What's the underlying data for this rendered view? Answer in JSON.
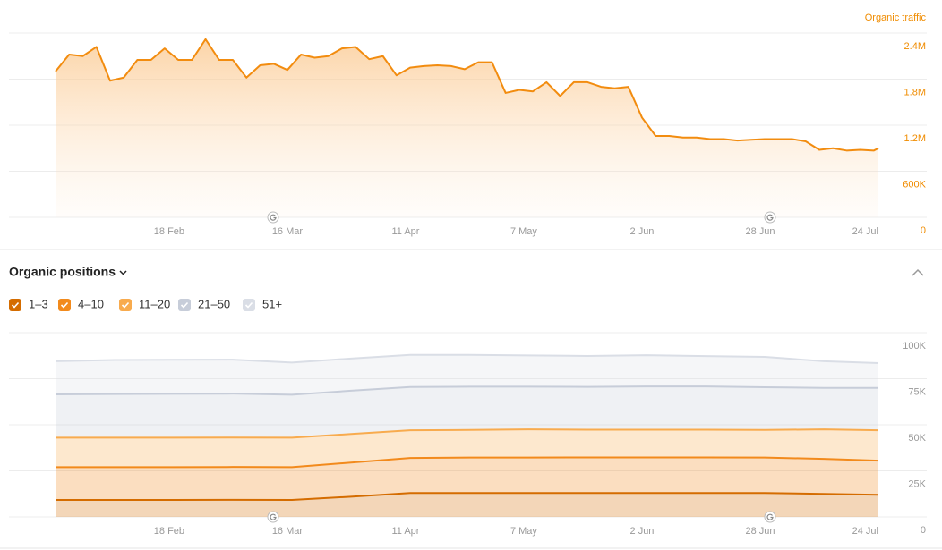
{
  "chart_data": [
    {
      "type": "area",
      "y_label": "Organic traffic",
      "color": "#f28c0f",
      "x": [
        0,
        3,
        6,
        9,
        12,
        15,
        18,
        21,
        24,
        27,
        30,
        33,
        36,
        39,
        42,
        45,
        48,
        51,
        54,
        57,
        60,
        63,
        66,
        69,
        72,
        75,
        78,
        81,
        84,
        87,
        90,
        93,
        96,
        99,
        102,
        105,
        108,
        111,
        114,
        117,
        120,
        123,
        126,
        129,
        132,
        135,
        138,
        141,
        144,
        147,
        150,
        153,
        156,
        159,
        162,
        165,
        168,
        171,
        174,
        177,
        180,
        181
      ],
      "values": [
        1900000,
        2120000,
        2100000,
        2220000,
        1780000,
        1820000,
        2050000,
        2050000,
        2200000,
        2050000,
        2050000,
        2320000,
        2050000,
        2050000,
        1820000,
        1980000,
        2000000,
        1920000,
        2120000,
        2080000,
        2100000,
        2200000,
        2220000,
        2060000,
        2100000,
        1850000,
        1950000,
        1970000,
        1980000,
        1970000,
        1930000,
        2020000,
        2020000,
        1620000,
        1660000,
        1640000,
        1760000,
        1580000,
        1760000,
        1760000,
        1700000,
        1680000,
        1700000,
        1300000,
        1060000,
        1060000,
        1040000,
        1040000,
        1020000,
        1020000,
        1000000,
        1010000,
        1020000,
        1020000,
        1020000,
        990000,
        880000,
        900000,
        870000,
        880000,
        870000,
        900000
      ],
      "xlim": [
        0,
        181
      ],
      "xticks": [
        {
          "value": 25,
          "label": "18 Feb"
        },
        {
          "value": 51,
          "label": "16 Mar"
        },
        {
          "value": 77,
          "label": "11 Apr"
        },
        {
          "value": 103,
          "label": "7 May"
        },
        {
          "value": 129,
          "label": "2 Jun"
        },
        {
          "value": 155,
          "label": "28 Jun"
        },
        {
          "value": 181,
          "label": "24 Jul"
        }
      ],
      "ylim": [
        0,
        2400000
      ],
      "yticks": [
        0,
        {
          "value": 600000,
          "label": "600K"
        },
        {
          "value": 1200000,
          "label": "1.2M"
        },
        {
          "value": 1800000,
          "label": "1.8M"
        },
        {
          "value": 2400000,
          "label": "2.4M"
        }
      ],
      "grid": true
    },
    {
      "type": "stacked_area",
      "title": "Organic positions",
      "x": [
        0,
        13,
        26,
        39,
        52,
        65,
        78,
        91,
        104,
        117,
        130,
        143,
        156,
        169,
        181
      ],
      "series": [
        {
          "name": "1–3",
          "color": "#d46c00",
          "values": [
            9200,
            9200,
            9200,
            9300,
            9200,
            11000,
            13000,
            13000,
            13000,
            13000,
            13000,
            13000,
            13000,
            12500,
            12000
          ]
        },
        {
          "name": "4–10",
          "color": "#f28a1c",
          "values": [
            17800,
            17800,
            17800,
            17800,
            17800,
            18500,
            19000,
            19200,
            19200,
            19300,
            19300,
            19300,
            19200,
            19000,
            18500
          ]
        },
        {
          "name": "11–20",
          "color": "#f8ab4e",
          "values": [
            16000,
            16000,
            16000,
            16000,
            16000,
            15500,
            15000,
            15000,
            15300,
            15000,
            15000,
            15000,
            15000,
            16000,
            16500
          ]
        },
        {
          "name": "21–50",
          "color": "#c7cdd9",
          "values": [
            23500,
            23700,
            23800,
            23800,
            23300,
            23500,
            23500,
            23500,
            23200,
            23300,
            23500,
            23500,
            23200,
            22500,
            23000
          ]
        },
        {
          "name": "51+",
          "color": "#dadee6",
          "values": [
            18000,
            18500,
            18500,
            18500,
            17500,
            17500,
            17500,
            17300,
            17000,
            16800,
            17000,
            16500,
            16500,
            14500,
            13500
          ]
        }
      ],
      "xlim": [
        0,
        181
      ],
      "xticks": [
        {
          "value": 25,
          "label": "18 Feb"
        },
        {
          "value": 51,
          "label": "16 Mar"
        },
        {
          "value": 77,
          "label": "11 Apr"
        },
        {
          "value": 103,
          "label": "7 May"
        },
        {
          "value": 129,
          "label": "2 Jun"
        },
        {
          "value": 155,
          "label": "28 Jun"
        },
        {
          "value": 181,
          "label": "24 Jul"
        }
      ],
      "ylim": [
        0,
        100000
      ],
      "yticks": [
        0,
        {
          "value": 25000,
          "label": "25K"
        },
        {
          "value": 50000,
          "label": "50K"
        },
        {
          "value": 75000,
          "label": "75K"
        },
        {
          "value": 100000,
          "label": "100K"
        }
      ],
      "grid": true
    }
  ]
}
